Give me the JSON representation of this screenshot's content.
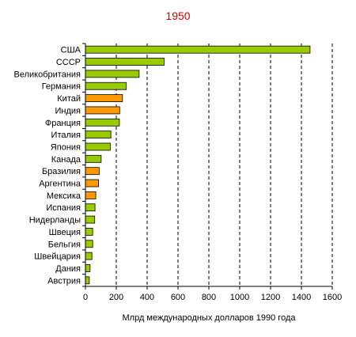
{
  "chart_data": {
    "type": "bar",
    "orientation": "horizontal",
    "title": "1950",
    "xlabel": "Млрд международных долларов 1990 года",
    "ylabel": "",
    "xlim": [
      0,
      1600
    ],
    "xticks": [
      0,
      200,
      400,
      600,
      800,
      1000,
      1200,
      1400,
      1600
    ],
    "grid": "vertical-dashed",
    "categories": [
      "США",
      "СССР",
      "Великобритания",
      "Германия",
      "Китай",
      "Индия",
      "Франция",
      "Италия",
      "Япония",
      "Канада",
      "Бразилия",
      "Аргентина",
      "Мексика",
      "Испания",
      "Нидерланды",
      "Швеция",
      "Бельгия",
      "Швейцария",
      "Дания",
      "Австрия"
    ],
    "values": [
      1456,
      510,
      348,
      265,
      240,
      222,
      220,
      165,
      161,
      102,
      89,
      85,
      67,
      62,
      60,
      47,
      47,
      42,
      30,
      25
    ],
    "bar_colors": [
      "#99cc00",
      "#99cc00",
      "#99cc00",
      "#99cc00",
      "#ff9900",
      "#ff9900",
      "#99cc00",
      "#99cc00",
      "#99cc00",
      "#99cc00",
      "#ff9900",
      "#ff9900",
      "#ff9900",
      "#99cc00",
      "#99cc00",
      "#99cc00",
      "#99cc00",
      "#99cc00",
      "#99cc00",
      "#99cc00"
    ],
    "colors": {
      "green": "#99cc00",
      "orange": "#ff9900",
      "title": "#d40000"
    }
  }
}
